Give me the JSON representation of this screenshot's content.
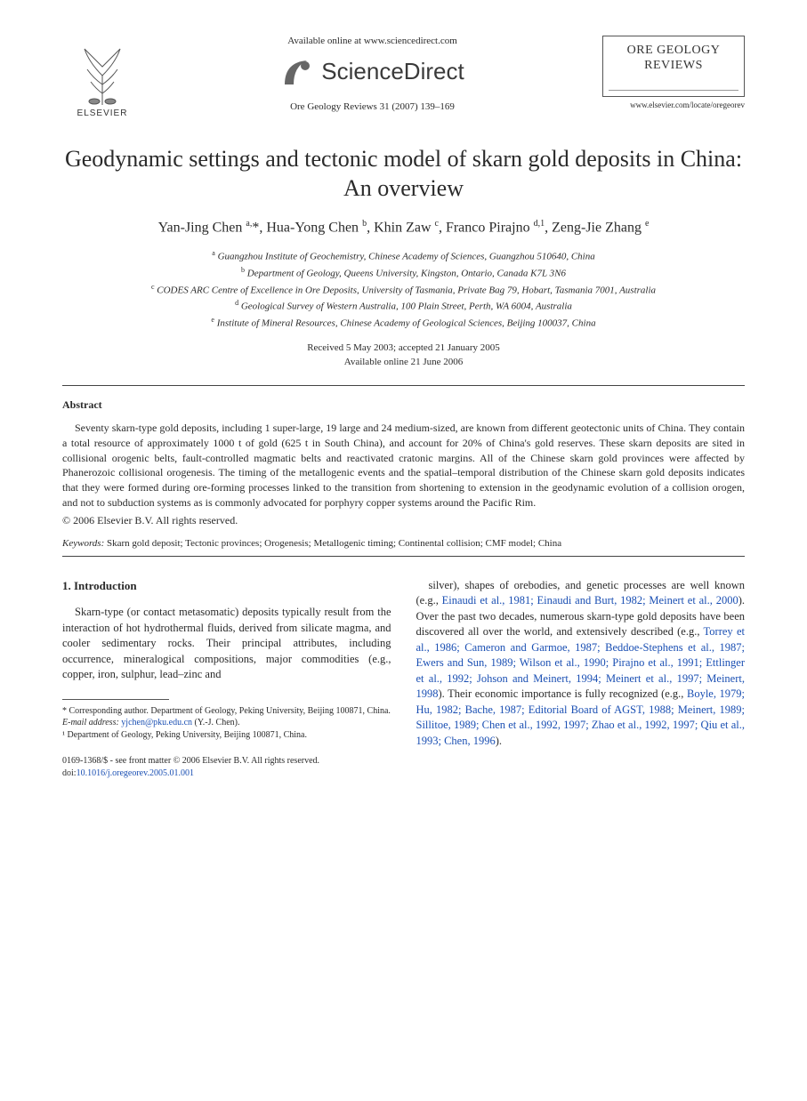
{
  "header": {
    "available_online": "Available online at www.sciencedirect.com",
    "sciencedirect": "ScienceDirect",
    "elsevier_label": "ELSEVIER",
    "citation": "Ore Geology Reviews 31 (2007) 139–169",
    "journal_name_line1": "ORE GEOLOGY",
    "journal_name_line2": "REVIEWS",
    "journal_url": "www.elsevier.com/locate/oregeorev"
  },
  "title": "Geodynamic settings and tectonic model of skarn gold deposits in China: An overview",
  "authors_html": "Yan-Jing Chen <sup>a,</sup>*, Hua-Yong Chen <sup>b</sup>, Khin Zaw <sup>c</sup>, Franco Pirajno <sup>d,1</sup>, Zeng-Jie Zhang <sup>e</sup>",
  "affiliations": [
    {
      "sup": "a",
      "text": "Guangzhou Institute of Geochemistry, Chinese Academy of Sciences, Guangzhou 510640, China"
    },
    {
      "sup": "b",
      "text": "Department of Geology, Queens University, Kingston, Ontario, Canada K7L 3N6"
    },
    {
      "sup": "c",
      "text": "CODES ARC Centre of Excellence in Ore Deposits, University of Tasmania, Private Bag 79, Hobart, Tasmania 7001, Australia"
    },
    {
      "sup": "d",
      "text": "Geological Survey of Western Australia, 100 Plain Street, Perth, WA 6004, Australia"
    },
    {
      "sup": "e",
      "text": "Institute of Mineral Resources, Chinese Academy of Geological Sciences, Beijing 100037, China"
    }
  ],
  "dates": {
    "line1": "Received 5 May 2003; accepted 21 January 2005",
    "line2": "Available online 21 June 2006"
  },
  "abstract": {
    "heading": "Abstract",
    "body": "Seventy skarn-type gold deposits, including 1 super-large, 19 large and 24 medium-sized, are known from different geotectonic units of China. They contain a total resource of approximately 1000 t of gold (625 t in South China), and account for 20% of China's gold reserves. These skarn deposits are sited in collisional orogenic belts, fault-controlled magmatic belts and reactivated cratonic margins. All of the Chinese skarn gold provinces were affected by Phanerozoic collisional orogenesis. The timing of the metallogenic events and the spatial–temporal distribution of the Chinese skarn gold deposits indicates that they were formed during ore-forming processes linked to the transition from shortening to extension in the geodynamic evolution of a collision orogen, and not to subduction systems as is commonly advocated for porphyry copper systems around the Pacific Rim.",
    "copyright": "© 2006 Elsevier B.V. All rights reserved."
  },
  "keywords": {
    "label": "Keywords:",
    "text": "Skarn gold deposit; Tectonic provinces; Orogenesis; Metallogenic timing; Continental collision; CMF model; China"
  },
  "section1": {
    "heading": "1. Introduction",
    "left_para": "Skarn-type (or contact metasomatic) deposits typically result from the interaction of hot hydrothermal fluids, derived from silicate magma, and cooler sedimentary rocks. Their principal attributes, including occurrence, mineralogical compositions, major commodities (e.g., copper, iron, sulphur, lead–zinc and",
    "right_pre": "silver), shapes of orebodies, and genetic processes are well known (e.g., ",
    "right_cite1": "Einaudi et al., 1981; Einaudi and Burt, 1982; Meinert et al., 2000",
    "right_mid1": "). Over the past two decades, numerous skarn-type gold deposits have been discovered all over the world, and extensively described (e.g., ",
    "right_cite2": "Torrey et al., 1986; Cameron and Garmoe, 1987; Beddoe-Stephens et al., 1987; Ewers and Sun, 1989; Wilson et al., 1990; Pirajno et al., 1991; Ettlinger et al., 1992; Johson and Meinert, 1994; Meinert et al., 1997; Meinert, 1998",
    "right_mid2": "). Their economic importance is fully recognized (e.g., ",
    "right_cite3": "Boyle, 1979; Hu, 1982; Bache, 1987; Editorial Board of AGST, 1988; Meinert, 1989; Sillitoe, 1989; Chen et al., 1992, 1997; Zhao et al., 1992, 1997; Qiu et al., 1993; Chen, 1996",
    "right_end": ")."
  },
  "footnotes": {
    "corr": "* Corresponding author. Department of Geology, Peking University, Beijing 100871, China.",
    "email_label": "E-mail address:",
    "email": "yjchen@pku.edu.cn",
    "email_name": "(Y.-J. Chen).",
    "note1": "¹ Department of Geology, Peking University, Beijing 100871, China."
  },
  "bottom": {
    "issn": "0169-1368/$ - see front matter © 2006 Elsevier B.V. All rights reserved.",
    "doi_label": "doi:",
    "doi": "10.1016/j.oregeorev.2005.01.001"
  },
  "colors": {
    "link": "#1a4fb3",
    "text": "#2a2a2a",
    "rule": "#444444"
  }
}
